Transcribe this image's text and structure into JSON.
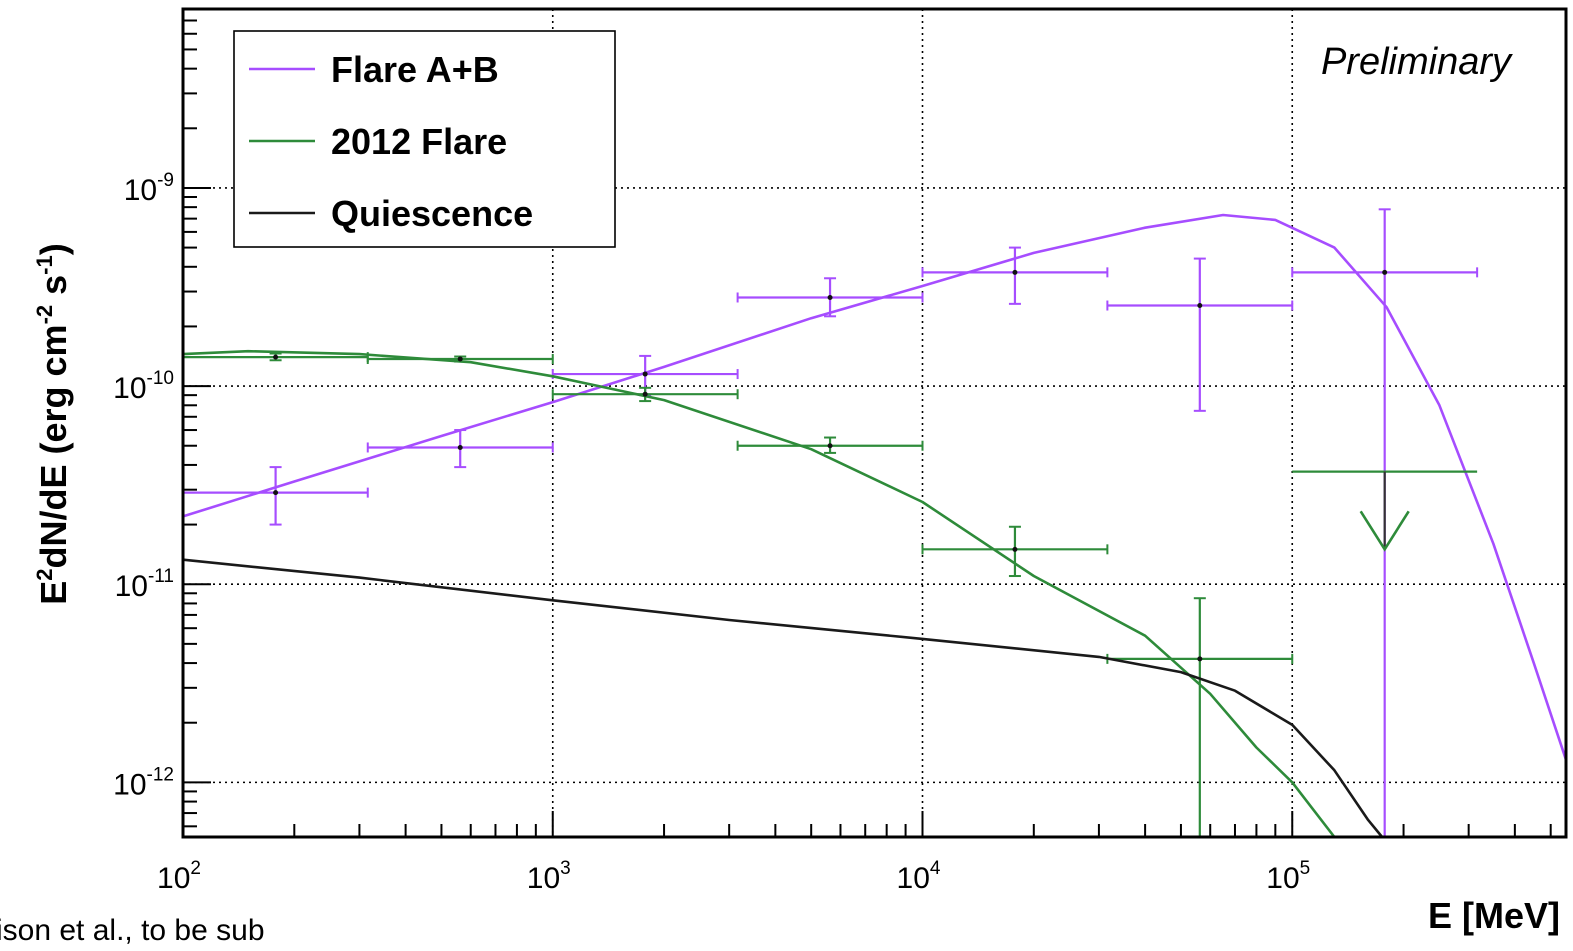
{
  "chart_data": {
    "type": "line",
    "xlabel": "E  [MeV]",
    "ylabel": "E²dN/dE (erg cm⁻² s⁻¹)",
    "xscale": "log",
    "yscale": "log",
    "xlim": [
      100,
      550000
    ],
    "ylim": [
      5.3e-13,
      8e-09
    ],
    "grid": true,
    "legend_position": "top-left",
    "annotation": "Preliminary",
    "x_tick_labels": [
      {
        "value": 100,
        "base": "10",
        "exp": "2"
      },
      {
        "value": 1000,
        "base": "10",
        "exp": "3"
      },
      {
        "value": 10000,
        "base": "10",
        "exp": "4"
      },
      {
        "value": 100000,
        "base": "10",
        "exp": "5"
      }
    ],
    "y_tick_labels": [
      {
        "value": 1e-09,
        "base": "10",
        "exp": "-9"
      },
      {
        "value": 1e-10,
        "base": "10",
        "exp": "-10"
      },
      {
        "value": 1e-11,
        "base": "10",
        "exp": "-11"
      },
      {
        "value": 1e-12,
        "base": "10",
        "exp": "-12"
      }
    ],
    "series": [
      {
        "name": "Flare A+B",
        "color": "#a64dff",
        "model": [
          [
            100,
            2.2e-11
          ],
          [
            200,
            3.3e-11
          ],
          [
            500,
            5.6e-11
          ],
          [
            1000,
            8.3e-11
          ],
          [
            2000,
            1.25e-10
          ],
          [
            5000,
            2.2e-10
          ],
          [
            10000,
            3.2e-10
          ],
          [
            20000,
            4.7e-10
          ],
          [
            40000,
            6.3e-10
          ],
          [
            65000,
            7.3e-10
          ],
          [
            90000,
            6.9e-10
          ],
          [
            130000,
            5e-10
          ],
          [
            180000,
            2.5e-10
          ],
          [
            250000,
            8e-11
          ],
          [
            350000,
            1.6e-11
          ],
          [
            450000,
            4e-12
          ],
          [
            550000,
            1.3e-12
          ]
        ],
        "points": [
          {
            "x": 178,
            "y": 2.9e-11,
            "xlo": 100,
            "xhi": 316,
            "ylo": 2e-11,
            "yhi": 3.9e-11
          },
          {
            "x": 562,
            "y": 4.9e-11,
            "xlo": 316,
            "xhi": 1000,
            "ylo": 3.9e-11,
            "yhi": 6e-11
          },
          {
            "x": 1778,
            "y": 1.15e-10,
            "xlo": 1000,
            "xhi": 3162,
            "ylo": 9e-11,
            "yhi": 1.42e-10
          },
          {
            "x": 5623,
            "y": 2.8e-10,
            "xlo": 3162,
            "xhi": 10000,
            "ylo": 2.25e-10,
            "yhi": 3.5e-10
          },
          {
            "x": 17783,
            "y": 3.75e-10,
            "xlo": 10000,
            "xhi": 31623,
            "ylo": 2.6e-10,
            "yhi": 5e-10
          },
          {
            "x": 56234,
            "y": 2.55e-10,
            "xlo": 31623,
            "xhi": 100000,
            "ylo": 7.5e-11,
            "yhi": 4.4e-10
          },
          {
            "x": 177828,
            "y": 3.75e-10,
            "xlo": 100000,
            "xhi": 316228,
            "ylo": 5.3e-13,
            "yhi": 7.8e-10
          }
        ]
      },
      {
        "name": "2012  Flare",
        "color": "#2e8b3a",
        "model": [
          [
            100,
            1.45e-10
          ],
          [
            150,
            1.5e-10
          ],
          [
            300,
            1.45e-10
          ],
          [
            600,
            1.32e-10
          ],
          [
            1000,
            1.12e-10
          ],
          [
            2000,
            8.5e-11
          ],
          [
            5000,
            4.8e-11
          ],
          [
            10000,
            2.6e-11
          ],
          [
            20000,
            1.1e-11
          ],
          [
            40000,
            5.5e-12
          ],
          [
            60000,
            2.8e-12
          ],
          [
            80000,
            1.5e-12
          ],
          [
            100000,
            1e-12
          ],
          [
            130000,
            5.3e-13
          ]
        ],
        "points": [
          {
            "x": 178,
            "y": 1.4e-10,
            "xlo": 100,
            "xhi": 316,
            "ylo": 1.35e-10,
            "yhi": 1.46e-10
          },
          {
            "x": 562,
            "y": 1.37e-10,
            "xlo": 316,
            "xhi": 1000,
            "ylo": 1.33e-10,
            "yhi": 1.41e-10
          },
          {
            "x": 1778,
            "y": 9.1e-11,
            "xlo": 1000,
            "xhi": 3162,
            "ylo": 8.4e-11,
            "yhi": 9.8e-11
          },
          {
            "x": 5623,
            "y": 5e-11,
            "xlo": 3162,
            "xhi": 10000,
            "ylo": 4.6e-11,
            "yhi": 5.5e-11
          },
          {
            "x": 17783,
            "y": 1.5e-11,
            "xlo": 10000,
            "xhi": 31623,
            "ylo": 1.1e-11,
            "yhi": 1.95e-11
          },
          {
            "x": 56234,
            "y": 4.2e-12,
            "xlo": 31623,
            "xhi": 100000,
            "ylo": 5.3e-13,
            "yhi": 8.5e-12
          }
        ],
        "upper_limits": [
          {
            "x": 177828,
            "y": 3.7e-11,
            "xlo": 100000,
            "xhi": 316228,
            "arrow_to": 1.5e-11
          }
        ]
      },
      {
        "name": "Quiescence",
        "color": "#1a1a1a",
        "model": [
          [
            100,
            1.33e-11
          ],
          [
            300,
            1.08e-11
          ],
          [
            1000,
            8.3e-12
          ],
          [
            3000,
            6.6e-12
          ],
          [
            10000,
            5.3e-12
          ],
          [
            30000,
            4.3e-12
          ],
          [
            50000,
            3.6e-12
          ],
          [
            70000,
            2.9e-12
          ],
          [
            100000,
            1.95e-12
          ],
          [
            130000,
            1.15e-12
          ],
          [
            160000,
            6.5e-13
          ],
          [
            175000,
            5.3e-13
          ]
        ]
      }
    ]
  },
  "footnote": "ison et al., to be sub"
}
